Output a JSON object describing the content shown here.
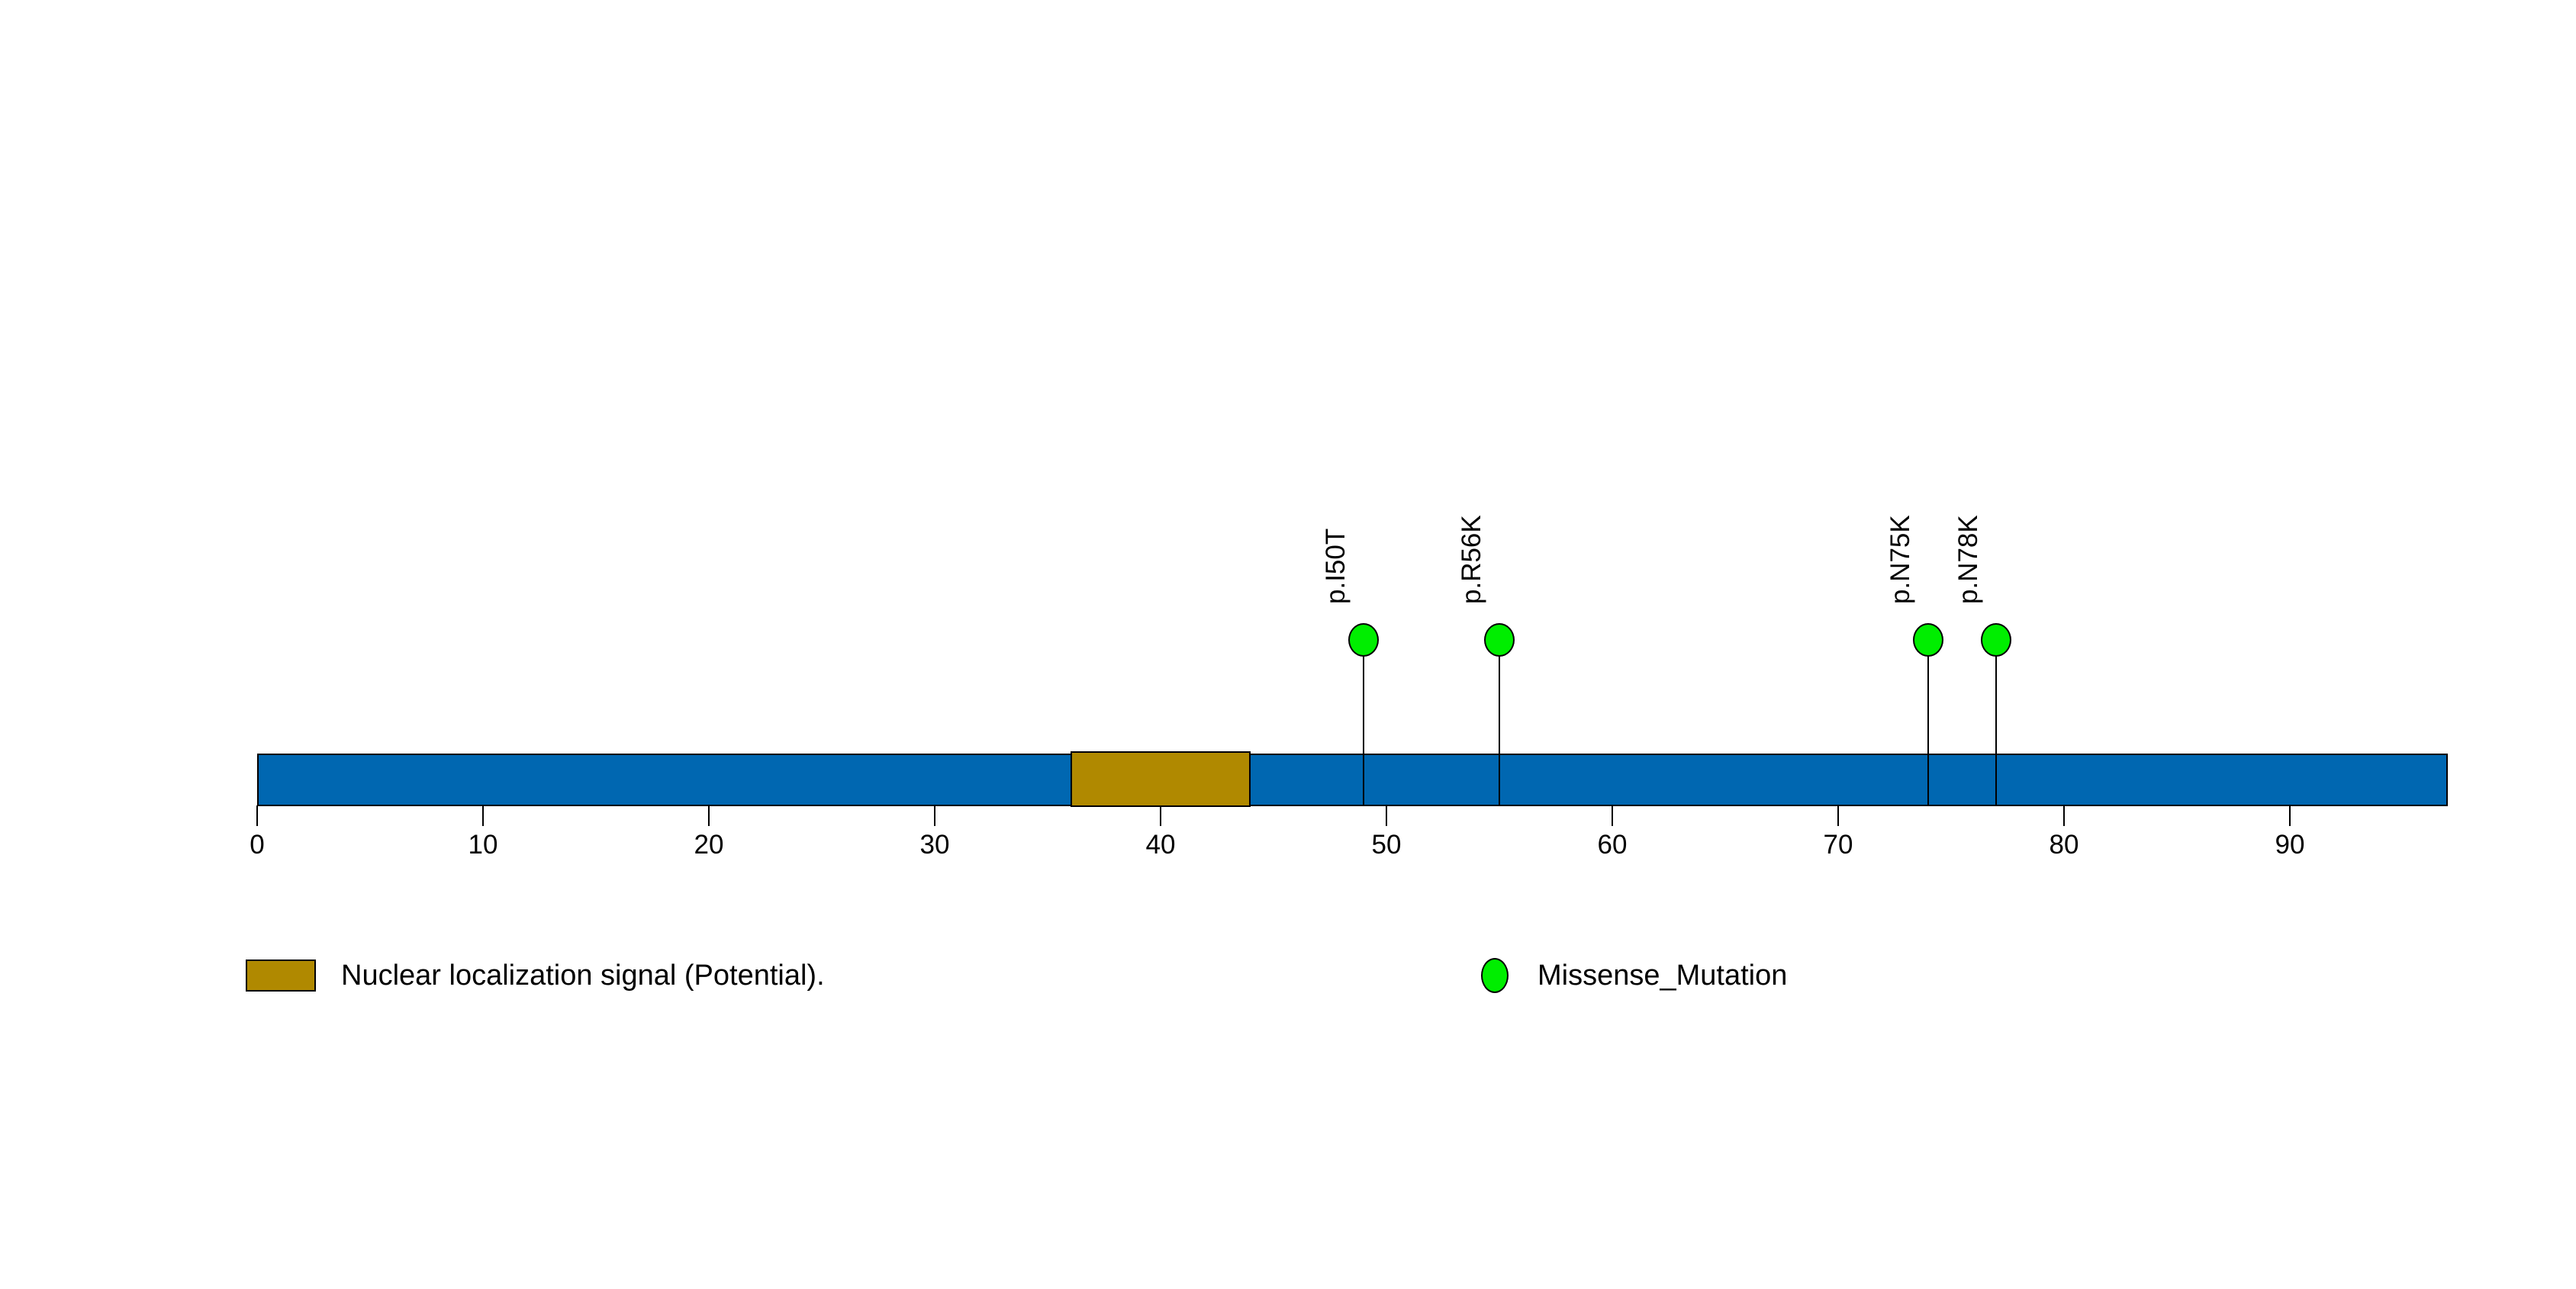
{
  "figure": {
    "kind": "protein lollipop mutation plot",
    "background_color": "#ffffff",
    "text_color": "#000000"
  },
  "chart_data": {
    "type": "lollipop",
    "title": "",
    "xlabel": "",
    "ylabel": "",
    "xlim": [
      0,
      97
    ],
    "protein_length_aa": 97,
    "x_ticks": [
      0,
      10,
      20,
      30,
      40,
      50,
      60,
      70,
      80,
      90
    ],
    "grid": false,
    "backbone": {
      "color": "#0067b1",
      "outline_color": "#000000",
      "start": 0,
      "end": 97
    },
    "domains": [
      {
        "label": "Nuclear localization signal (Potential).",
        "start": 36,
        "end": 44,
        "color": "#b08900",
        "outline_color": "#000000"
      }
    ],
    "mutations": [
      {
        "label": "p.I50T",
        "amino_acid": 50,
        "plot_x": 49,
        "mutation_type": "Missense_Mutation",
        "color": "#00ee00"
      },
      {
        "label": "p.R56K",
        "amino_acid": 56,
        "plot_x": 55,
        "mutation_type": "Missense_Mutation",
        "color": "#00ee00"
      },
      {
        "label": "p.N75K",
        "amino_acid": 75,
        "plot_x": 74,
        "mutation_type": "Missense_Mutation",
        "color": "#00ee00"
      },
      {
        "label": "p.N78K",
        "amino_acid": 78,
        "plot_x": 77,
        "mutation_type": "Missense_Mutation",
        "color": "#00ee00"
      }
    ],
    "legend_position": "bottom",
    "legend": [
      {
        "shape": "rect",
        "label": "Nuclear localization signal (Potential).",
        "color": "#b08900"
      },
      {
        "shape": "circle",
        "label": "Missense_Mutation",
        "color": "#00ee00"
      }
    ]
  }
}
